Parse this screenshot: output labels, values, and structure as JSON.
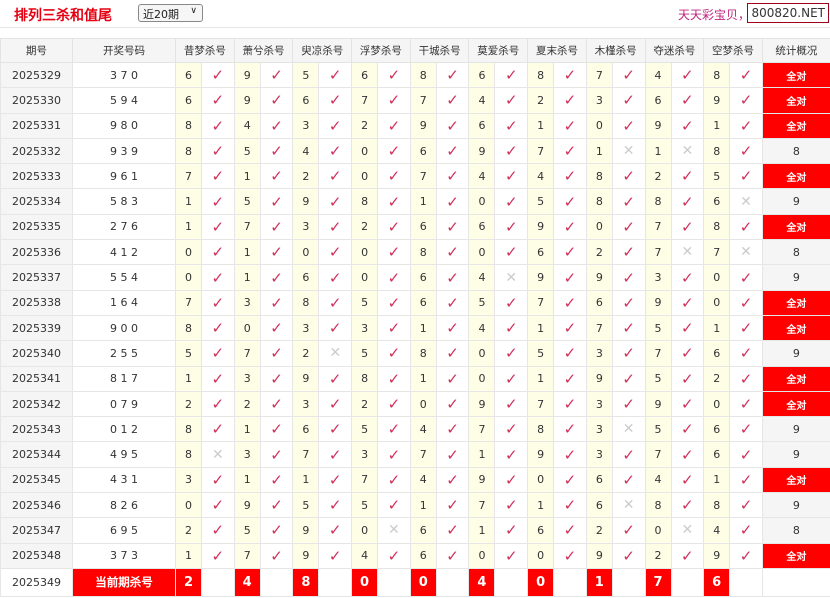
{
  "header": {
    "title": "排列三杀和值尾",
    "range_select": "近20期",
    "brand": "天天彩宝贝，",
    "site": "800820.NET"
  },
  "colors": {
    "accent": "#ff0000",
    "hit": "#d0305a",
    "miss": "#cccccc",
    "highlight": "#fefde6"
  },
  "columns": {
    "issue": "期号",
    "draw": "开奖号码",
    "experts": [
      "昔梦杀号",
      "萧兮杀号",
      "臾凉杀号",
      "浮梦杀号",
      "干城杀号",
      "莫爱杀号",
      "夏末杀号",
      "木槿杀号",
      "夺迷杀号",
      "空梦杀号"
    ],
    "stat": "统计概况"
  },
  "rows": [
    {
      "issue": "2025329",
      "draw": "3 7 0",
      "picks": [
        [
          6,
          1
        ],
        [
          9,
          1
        ],
        [
          5,
          1
        ],
        [
          6,
          1
        ],
        [
          8,
          1
        ],
        [
          6,
          1
        ],
        [
          8,
          1
        ],
        [
          7,
          1
        ],
        [
          4,
          1
        ],
        [
          8,
          1
        ]
      ],
      "stat": "全对"
    },
    {
      "issue": "2025330",
      "draw": "5 9 4",
      "picks": [
        [
          6,
          1
        ],
        [
          9,
          1
        ],
        [
          6,
          1
        ],
        [
          7,
          1
        ],
        [
          7,
          1
        ],
        [
          4,
          1
        ],
        [
          2,
          1
        ],
        [
          3,
          1
        ],
        [
          6,
          1
        ],
        [
          9,
          1
        ]
      ],
      "stat": "全对"
    },
    {
      "issue": "2025331",
      "draw": "9 8 0",
      "picks": [
        [
          8,
          1
        ],
        [
          4,
          1
        ],
        [
          3,
          1
        ],
        [
          2,
          1
        ],
        [
          9,
          1
        ],
        [
          6,
          1
        ],
        [
          1,
          1
        ],
        [
          0,
          1
        ],
        [
          9,
          1
        ],
        [
          1,
          1
        ]
      ],
      "stat": "全对"
    },
    {
      "issue": "2025332",
      "draw": "9 3 9",
      "picks": [
        [
          8,
          1
        ],
        [
          5,
          1
        ],
        [
          4,
          1
        ],
        [
          0,
          1
        ],
        [
          6,
          1
        ],
        [
          9,
          1
        ],
        [
          7,
          1
        ],
        [
          1,
          0
        ],
        [
          1,
          0
        ],
        [
          8,
          1
        ]
      ],
      "stat": "8"
    },
    {
      "issue": "2025333",
      "draw": "9 6 1",
      "picks": [
        [
          7,
          1
        ],
        [
          1,
          1
        ],
        [
          2,
          1
        ],
        [
          0,
          1
        ],
        [
          7,
          1
        ],
        [
          4,
          1
        ],
        [
          4,
          1
        ],
        [
          8,
          1
        ],
        [
          2,
          1
        ],
        [
          5,
          1
        ]
      ],
      "stat": "全对"
    },
    {
      "issue": "2025334",
      "draw": "5 8 3",
      "picks": [
        [
          1,
          1
        ],
        [
          5,
          1
        ],
        [
          9,
          1
        ],
        [
          8,
          1
        ],
        [
          1,
          1
        ],
        [
          0,
          1
        ],
        [
          5,
          1
        ],
        [
          8,
          1
        ],
        [
          8,
          1
        ],
        [
          6,
          0
        ]
      ],
      "stat": "9"
    },
    {
      "issue": "2025335",
      "draw": "2 7 6",
      "picks": [
        [
          1,
          1
        ],
        [
          7,
          1
        ],
        [
          3,
          1
        ],
        [
          2,
          1
        ],
        [
          6,
          1
        ],
        [
          6,
          1
        ],
        [
          9,
          1
        ],
        [
          0,
          1
        ],
        [
          7,
          1
        ],
        [
          8,
          1
        ]
      ],
      "stat": "全对"
    },
    {
      "issue": "2025336",
      "draw": "4 1 2",
      "picks": [
        [
          0,
          1
        ],
        [
          1,
          1
        ],
        [
          0,
          1
        ],
        [
          0,
          1
        ],
        [
          8,
          1
        ],
        [
          0,
          1
        ],
        [
          6,
          1
        ],
        [
          2,
          1
        ],
        [
          7,
          0
        ],
        [
          7,
          0
        ]
      ],
      "stat": "8"
    },
    {
      "issue": "2025337",
      "draw": "5 5 4",
      "picks": [
        [
          0,
          1
        ],
        [
          1,
          1
        ],
        [
          6,
          1
        ],
        [
          0,
          1
        ],
        [
          6,
          1
        ],
        [
          4,
          0
        ],
        [
          9,
          1
        ],
        [
          9,
          1
        ],
        [
          3,
          1
        ],
        [
          0,
          1
        ]
      ],
      "stat": "9"
    },
    {
      "issue": "2025338",
      "draw": "1 6 4",
      "picks": [
        [
          7,
          1
        ],
        [
          3,
          1
        ],
        [
          8,
          1
        ],
        [
          5,
          1
        ],
        [
          6,
          1
        ],
        [
          5,
          1
        ],
        [
          7,
          1
        ],
        [
          6,
          1
        ],
        [
          9,
          1
        ],
        [
          0,
          1
        ]
      ],
      "stat": "全对"
    },
    {
      "issue": "2025339",
      "draw": "9 0 0",
      "picks": [
        [
          8,
          1
        ],
        [
          0,
          1
        ],
        [
          3,
          1
        ],
        [
          3,
          1
        ],
        [
          1,
          1
        ],
        [
          4,
          1
        ],
        [
          1,
          1
        ],
        [
          7,
          1
        ],
        [
          5,
          1
        ],
        [
          1,
          1
        ]
      ],
      "stat": "全对"
    },
    {
      "issue": "2025340",
      "draw": "2 5 5",
      "picks": [
        [
          5,
          1
        ],
        [
          7,
          1
        ],
        [
          2,
          0
        ],
        [
          5,
          1
        ],
        [
          8,
          1
        ],
        [
          0,
          1
        ],
        [
          5,
          1
        ],
        [
          3,
          1
        ],
        [
          7,
          1
        ],
        [
          6,
          1
        ]
      ],
      "stat": "9"
    },
    {
      "issue": "2025341",
      "draw": "8 1 7",
      "picks": [
        [
          1,
          1
        ],
        [
          3,
          1
        ],
        [
          9,
          1
        ],
        [
          8,
          1
        ],
        [
          1,
          1
        ],
        [
          0,
          1
        ],
        [
          1,
          1
        ],
        [
          9,
          1
        ],
        [
          5,
          1
        ],
        [
          2,
          1
        ]
      ],
      "stat": "全对"
    },
    {
      "issue": "2025342",
      "draw": "0 7 9",
      "picks": [
        [
          2,
          1
        ],
        [
          2,
          1
        ],
        [
          3,
          1
        ],
        [
          2,
          1
        ],
        [
          0,
          1
        ],
        [
          9,
          1
        ],
        [
          7,
          1
        ],
        [
          3,
          1
        ],
        [
          9,
          1
        ],
        [
          0,
          1
        ]
      ],
      "stat": "全对"
    },
    {
      "issue": "2025343",
      "draw": "0 1 2",
      "picks": [
        [
          8,
          1
        ],
        [
          1,
          1
        ],
        [
          6,
          1
        ],
        [
          5,
          1
        ],
        [
          4,
          1
        ],
        [
          7,
          1
        ],
        [
          8,
          1
        ],
        [
          3,
          0
        ],
        [
          5,
          1
        ],
        [
          6,
          1
        ]
      ],
      "stat": "9"
    },
    {
      "issue": "2025344",
      "draw": "4 9 5",
      "picks": [
        [
          8,
          0
        ],
        [
          3,
          1
        ],
        [
          7,
          1
        ],
        [
          3,
          1
        ],
        [
          7,
          1
        ],
        [
          1,
          1
        ],
        [
          9,
          1
        ],
        [
          3,
          1
        ],
        [
          7,
          1
        ],
        [
          6,
          1
        ]
      ],
      "stat": "9"
    },
    {
      "issue": "2025345",
      "draw": "4 3 1",
      "picks": [
        [
          3,
          1
        ],
        [
          1,
          1
        ],
        [
          1,
          1
        ],
        [
          7,
          1
        ],
        [
          4,
          1
        ],
        [
          9,
          1
        ],
        [
          0,
          1
        ],
        [
          6,
          1
        ],
        [
          4,
          1
        ],
        [
          1,
          1
        ]
      ],
      "stat": "全对"
    },
    {
      "issue": "2025346",
      "draw": "8 2 6",
      "picks": [
        [
          0,
          1
        ],
        [
          9,
          1
        ],
        [
          5,
          1
        ],
        [
          5,
          1
        ],
        [
          1,
          1
        ],
        [
          7,
          1
        ],
        [
          1,
          1
        ],
        [
          6,
          0
        ],
        [
          8,
          1
        ],
        [
          8,
          1
        ]
      ],
      "stat": "9"
    },
    {
      "issue": "2025347",
      "draw": "6 9 5",
      "picks": [
        [
          2,
          1
        ],
        [
          5,
          1
        ],
        [
          9,
          1
        ],
        [
          0,
          0
        ],
        [
          6,
          1
        ],
        [
          1,
          1
        ],
        [
          6,
          1
        ],
        [
          2,
          1
        ],
        [
          0,
          0
        ],
        [
          4,
          1
        ]
      ],
      "stat": "8"
    },
    {
      "issue": "2025348",
      "draw": "3 7 3",
      "picks": [
        [
          1,
          1
        ],
        [
          7,
          1
        ],
        [
          9,
          1
        ],
        [
          4,
          1
        ],
        [
          6,
          1
        ],
        [
          0,
          1
        ],
        [
          0,
          1
        ],
        [
          9,
          1
        ],
        [
          2,
          1
        ],
        [
          9,
          1
        ]
      ],
      "stat": "全对"
    }
  ],
  "current": {
    "issue": "2025349",
    "label": "当前期杀号",
    "kills": [
      2,
      4,
      8,
      0,
      0,
      4,
      0,
      1,
      7,
      6
    ]
  },
  "marks": {
    "hit": "✓",
    "miss": "✕"
  }
}
